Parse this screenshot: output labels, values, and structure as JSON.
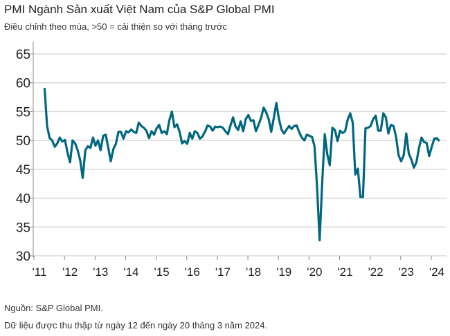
{
  "chart_data": {
    "type": "line",
    "title": "PMI Ngành Sản xuất Việt Nam của S&P Global PMI",
    "subtitle": "Điều chỉnh theo mùa, >50 = cải thiện so với tháng trước",
    "xlabel": "",
    "ylabel": "",
    "ylim": [
      30,
      65
    ],
    "yticks": [
      30,
      35,
      40,
      45,
      50,
      55,
      60,
      65
    ],
    "xtick_labels": [
      "'11",
      "'12",
      "'13",
      "'14",
      "'15",
      "'16",
      "'17",
      "'18",
      "'19",
      "'20",
      "'21",
      "'22",
      "'23",
      "'24"
    ],
    "start": "2011-03",
    "grid": true,
    "line_color": "#00677f",
    "values": [
      59.1,
      52.5,
      50.4,
      50.0,
      48.9,
      49.5,
      50.5,
      49.8,
      50.1,
      47.9,
      46.2,
      50.0,
      49.5,
      48.3,
      46.5,
      43.5,
      48.3,
      49.0,
      48.7,
      50.5,
      49.1,
      50.0,
      48.3,
      50.8,
      51.0,
      48.8,
      46.4,
      48.5,
      49.4,
      51.5,
      51.5,
      50.3,
      51.6,
      51.4,
      51.9,
      51.5,
      51.3,
      53.1,
      52.5,
      52.2,
      51.7,
      50.4,
      51.6,
      51.0,
      52.1,
      52.7,
      51.3,
      51.6,
      51.1,
      53.5,
      55.0,
      52.3,
      52.8,
      51.5,
      49.5,
      49.9,
      49.4,
      51.3,
      50.3,
      51.6,
      51.3,
      50.3,
      50.7,
      51.5,
      52.6,
      52.4,
      51.7,
      52.4,
      52.3,
      52.4,
      52.2,
      51.6,
      51.1,
      52.6,
      54.0,
      52.4,
      51.8,
      53.3,
      51.6,
      53.7,
      54.4,
      53.4,
      53.5,
      51.6,
      52.7,
      53.9,
      55.7,
      54.9,
      53.7,
      51.5,
      53.9,
      56.5,
      53.8,
      51.9,
      51.2,
      51.9,
      52.5,
      52.0,
      52.5,
      52.6,
      51.4,
      50.5,
      50.0,
      51.0,
      50.8,
      50.6,
      49.0,
      41.9,
      32.7,
      42.7,
      51.1,
      47.6,
      45.7,
      52.2,
      51.8,
      49.9,
      51.7,
      51.3,
      51.6,
      53.6,
      54.7,
      53.1,
      44.1,
      45.1,
      40.2,
      40.2,
      52.1,
      52.2,
      52.5,
      53.7,
      54.3,
      51.7,
      51.7,
      54.7,
      54.0,
      51.2,
      52.7,
      52.5,
      50.6,
      47.4,
      46.4,
      47.4,
      51.2,
      47.7,
      46.7,
      45.3,
      46.2,
      48.7,
      50.5,
      49.7,
      49.6,
      47.3,
      48.9,
      50.3,
      50.4,
      49.9
    ]
  },
  "footer": {
    "source": "Nguồn: S&P Global PMI.",
    "note": "Dữ liệu được thu thập từ ngày 12 đến ngày 20 tháng 3 năm 2024."
  }
}
